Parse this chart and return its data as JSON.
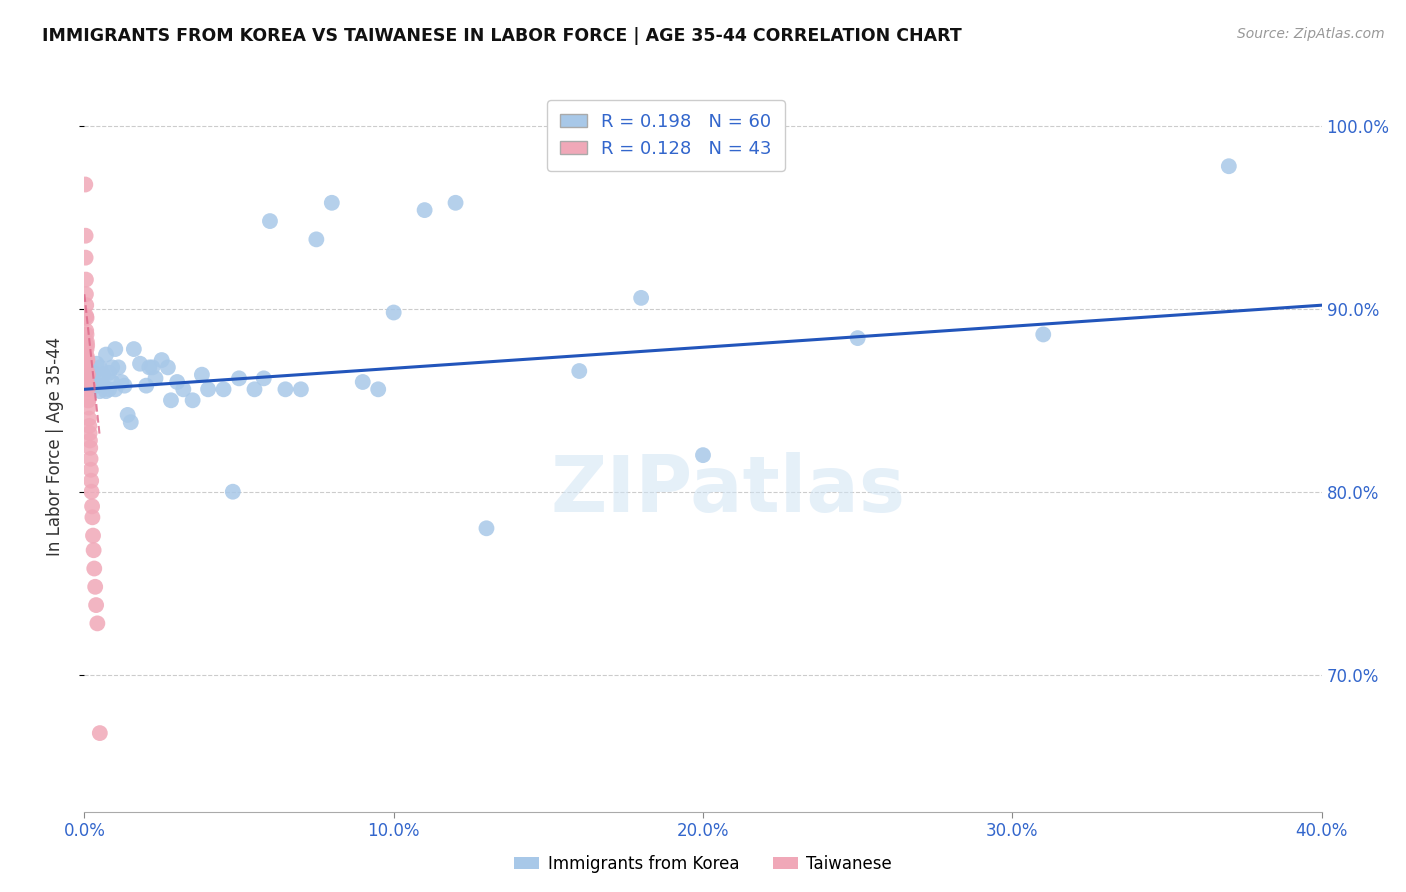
{
  "title": "IMMIGRANTS FROM KOREA VS TAIWANESE IN LABOR FORCE | AGE 35-44 CORRELATION CHART",
  "source": "Source: ZipAtlas.com",
  "ylabel": "In Labor Force | Age 35-44",
  "xmin": 0.0,
  "xmax": 0.4,
  "ymin": 0.625,
  "ymax": 1.025,
  "korea_R": 0.198,
  "korea_N": 60,
  "taiwan_R": 0.128,
  "taiwan_N": 43,
  "korea_color": "#a8c8e8",
  "taiwan_color": "#f0a8b8",
  "korea_line_color": "#2255bb",
  "taiwan_line_color": "#dd6688",
  "watermark": "ZIPatlas",
  "legend_korea_label": "Immigrants from Korea",
  "legend_taiwan_label": "Taiwanese",
  "korea_scatter_x": [
    0.001,
    0.002,
    0.003,
    0.003,
    0.004,
    0.004,
    0.005,
    0.005,
    0.005,
    0.006,
    0.006,
    0.007,
    0.007,
    0.008,
    0.008,
    0.009,
    0.009,
    0.01,
    0.01,
    0.011,
    0.012,
    0.013,
    0.014,
    0.015,
    0.016,
    0.018,
    0.02,
    0.021,
    0.022,
    0.023,
    0.025,
    0.027,
    0.028,
    0.03,
    0.032,
    0.035,
    0.038,
    0.04,
    0.045,
    0.048,
    0.05,
    0.055,
    0.058,
    0.06,
    0.065,
    0.07,
    0.075,
    0.08,
    0.09,
    0.095,
    0.1,
    0.11,
    0.12,
    0.13,
    0.16,
    0.18,
    0.2,
    0.25,
    0.31,
    0.37
  ],
  "korea_scatter_y": [
    0.86,
    0.862,
    0.858,
    0.865,
    0.858,
    0.87,
    0.855,
    0.862,
    0.868,
    0.858,
    0.864,
    0.855,
    0.875,
    0.856,
    0.865,
    0.86,
    0.868,
    0.856,
    0.878,
    0.868,
    0.86,
    0.858,
    0.842,
    0.838,
    0.878,
    0.87,
    0.858,
    0.868,
    0.868,
    0.862,
    0.872,
    0.868,
    0.85,
    0.86,
    0.856,
    0.85,
    0.864,
    0.856,
    0.856,
    0.8,
    0.862,
    0.856,
    0.862,
    0.948,
    0.856,
    0.856,
    0.938,
    0.958,
    0.86,
    0.856,
    0.898,
    0.954,
    0.958,
    0.78,
    0.866,
    0.906,
    0.82,
    0.884,
    0.886,
    0.978
  ],
  "taiwan_scatter_x": [
    0.0003,
    0.0004,
    0.0004,
    0.0005,
    0.0005,
    0.0006,
    0.0006,
    0.0006,
    0.0007,
    0.0007,
    0.0007,
    0.0008,
    0.0008,
    0.0008,
    0.0009,
    0.0009,
    0.001,
    0.001,
    0.001,
    0.0011,
    0.0011,
    0.0012,
    0.0012,
    0.0013,
    0.0014,
    0.0015,
    0.0016,
    0.0017,
    0.0018,
    0.0019,
    0.002,
    0.0021,
    0.0022,
    0.0023,
    0.0025,
    0.0026,
    0.0028,
    0.003,
    0.0032,
    0.0035,
    0.0038,
    0.0042,
    0.005
  ],
  "taiwan_scatter_y": [
    0.968,
    0.94,
    0.928,
    0.916,
    0.908,
    0.902,
    0.896,
    0.888,
    0.895,
    0.886,
    0.878,
    0.882,
    0.874,
    0.866,
    0.88,
    0.872,
    0.872,
    0.864,
    0.856,
    0.864,
    0.858,
    0.858,
    0.85,
    0.85,
    0.846,
    0.84,
    0.836,
    0.832,
    0.828,
    0.824,
    0.818,
    0.812,
    0.806,
    0.8,
    0.792,
    0.786,
    0.776,
    0.768,
    0.758,
    0.748,
    0.738,
    0.728,
    0.668
  ],
  "yticks": [
    0.7,
    0.8,
    0.9,
    1.0
  ],
  "ytick_labels": [
    "70.0%",
    "80.0%",
    "90.0%",
    "100.0%"
  ],
  "xticks": [
    0.0,
    0.1,
    0.2,
    0.3,
    0.4
  ],
  "xtick_labels": [
    "0.0%",
    "10.0%",
    "20.0%",
    "30.0%",
    "40.0%"
  ],
  "korea_trendline_x": [
    0.0,
    0.4
  ],
  "korea_trendline_y": [
    0.856,
    0.902
  ],
  "taiwan_trendline_x": [
    0.0,
    0.005
  ],
  "taiwan_trendline_y": [
    0.908,
    0.83
  ]
}
